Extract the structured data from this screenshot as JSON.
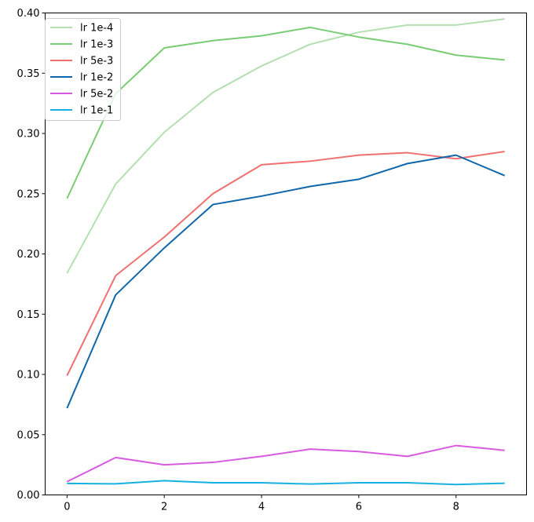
{
  "chart_data": {
    "type": "line",
    "title": "",
    "xlabel": "",
    "ylabel": "",
    "x": [
      0,
      1,
      2,
      3,
      4,
      5,
      6,
      7,
      8,
      9
    ],
    "xlim": [
      -0.45,
      9.45
    ],
    "ylim": [
      0.0,
      0.4
    ],
    "xticks": [
      0,
      2,
      4,
      6,
      8
    ],
    "yticks": [
      0.0,
      0.05,
      0.1,
      0.15,
      0.2,
      0.25,
      0.3,
      0.35,
      0.4
    ],
    "xtick_labels": [
      "0",
      "2",
      "4",
      "6",
      "8"
    ],
    "ytick_labels": [
      "0.00",
      "0.05",
      "0.10",
      "0.15",
      "0.20",
      "0.25",
      "0.30",
      "0.35",
      "0.40"
    ],
    "grid": false,
    "legend_position": "upper-left",
    "series": [
      {
        "name": "lr 1e-4",
        "color": "#b3e0b0",
        "values": [
          0.184,
          0.258,
          0.301,
          0.334,
          0.356,
          0.374,
          0.384,
          0.39,
          0.39,
          0.395
        ]
      },
      {
        "name": "lr 1e-3",
        "color": "#7acc74",
        "values": [
          0.246,
          0.333,
          0.371,
          0.377,
          0.381,
          0.388,
          0.38,
          0.374,
          0.365,
          0.361
        ]
      },
      {
        "name": "lr 5e-3",
        "color": "#f07070",
        "values": [
          0.099,
          0.182,
          0.214,
          0.25,
          0.274,
          0.277,
          0.282,
          0.284,
          0.279,
          0.285
        ]
      },
      {
        "name": "lr 1e-2",
        "color": "#1066aa",
        "values": [
          0.072,
          0.166,
          0.205,
          0.241,
          0.248,
          0.256,
          0.262,
          0.275,
          0.282,
          0.265
        ]
      },
      {
        "name": "lr 5e-2",
        "color": "#d85ae0",
        "values": [
          0.011,
          0.031,
          0.025,
          0.027,
          0.032,
          0.038,
          0.036,
          0.032,
          0.041,
          0.037
        ]
      },
      {
        "name": "lr 1e-1",
        "color": "#17b0e0",
        "values": [
          0.0095,
          0.0092,
          0.0118,
          0.0101,
          0.0101,
          0.009,
          0.0101,
          0.0101,
          0.0086,
          0.0097
        ]
      }
    ]
  }
}
